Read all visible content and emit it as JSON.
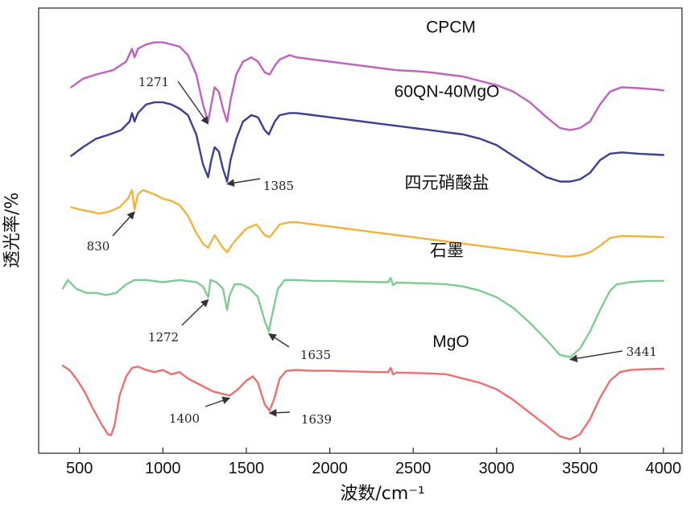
{
  "chart_data": {
    "type": "line",
    "title": "",
    "xlabel": "波数/cm⁻¹",
    "ylabel": "透光率/%",
    "xlim": [
      380,
      4050
    ],
    "xticks": [
      500,
      1000,
      1500,
      2000,
      2500,
      3000,
      3500,
      4000
    ],
    "y_ticks_shown": false,
    "ylim": [
      0,
      100
    ],
    "series": [
      {
        "name": "CPCM",
        "color": "#c061c0",
        "points": [
          [
            450,
            83
          ],
          [
            520,
            85
          ],
          [
            600,
            86
          ],
          [
            700,
            87
          ],
          [
            780,
            89
          ],
          [
            815,
            92
          ],
          [
            830,
            90
          ],
          [
            850,
            92
          ],
          [
            900,
            93
          ],
          [
            950,
            93.5
          ],
          [
            1000,
            93.5
          ],
          [
            1050,
            93
          ],
          [
            1100,
            92.5
          ],
          [
            1150,
            90.5
          ],
          [
            1200,
            86
          ],
          [
            1240,
            79
          ],
          [
            1271,
            75
          ],
          [
            1290,
            79
          ],
          [
            1310,
            83
          ],
          [
            1335,
            82
          ],
          [
            1360,
            78
          ],
          [
            1385,
            75
          ],
          [
            1405,
            80
          ],
          [
            1440,
            86
          ],
          [
            1480,
            89
          ],
          [
            1530,
            90
          ],
          [
            1570,
            89
          ],
          [
            1610,
            86.5
          ],
          [
            1640,
            86
          ],
          [
            1670,
            88
          ],
          [
            1700,
            89.5
          ],
          [
            1760,
            90.5
          ],
          [
            1800,
            90
          ],
          [
            1900,
            89.5
          ],
          [
            2000,
            89
          ],
          [
            2100,
            88.5
          ],
          [
            2200,
            88
          ],
          [
            2300,
            87.5
          ],
          [
            2400,
            87
          ],
          [
            2500,
            86.8
          ],
          [
            2600,
            86.5
          ],
          [
            2700,
            86
          ],
          [
            2800,
            85.5
          ],
          [
            2900,
            84.5
          ],
          [
            3000,
            83.5
          ],
          [
            3100,
            82
          ],
          [
            3200,
            79.5
          ],
          [
            3300,
            76
          ],
          [
            3380,
            73.5
          ],
          [
            3441,
            73
          ],
          [
            3500,
            73.5
          ],
          [
            3560,
            75
          ],
          [
            3620,
            79
          ],
          [
            3680,
            82
          ],
          [
            3750,
            83
          ],
          [
            3850,
            82.8
          ],
          [
            3950,
            82.5
          ],
          [
            4000,
            82.3
          ]
        ]
      },
      {
        "name": "60QN-40MgO",
        "color": "#3c3f94",
        "points": [
          [
            450,
            67
          ],
          [
            520,
            69
          ],
          [
            600,
            71
          ],
          [
            680,
            72
          ],
          [
            750,
            73
          ],
          [
            800,
            75
          ],
          [
            815,
            77
          ],
          [
            830,
            75
          ],
          [
            850,
            77
          ],
          [
            900,
            79
          ],
          [
            950,
            79.5
          ],
          [
            1000,
            79.5
          ],
          [
            1050,
            79
          ],
          [
            1100,
            78
          ],
          [
            1150,
            76.5
          ],
          [
            1200,
            72
          ],
          [
            1240,
            65
          ],
          [
            1271,
            62
          ],
          [
            1290,
            66
          ],
          [
            1310,
            69
          ],
          [
            1335,
            68
          ],
          [
            1360,
            64
          ],
          [
            1385,
            61
          ],
          [
            1405,
            66
          ],
          [
            1440,
            71
          ],
          [
            1480,
            75
          ],
          [
            1530,
            76.5
          ],
          [
            1570,
            76
          ],
          [
            1610,
            73
          ],
          [
            1635,
            72
          ],
          [
            1670,
            75
          ],
          [
            1700,
            76.5
          ],
          [
            1760,
            77
          ],
          [
            1800,
            77
          ],
          [
            1900,
            76.5
          ],
          [
            2000,
            76
          ],
          [
            2100,
            75.5
          ],
          [
            2200,
            75
          ],
          [
            2300,
            74.5
          ],
          [
            2400,
            74
          ],
          [
            2500,
            73.5
          ],
          [
            2600,
            73
          ],
          [
            2700,
            72.5
          ],
          [
            2800,
            72
          ],
          [
            2900,
            71
          ],
          [
            3000,
            69.5
          ],
          [
            3100,
            67
          ],
          [
            3200,
            64.5
          ],
          [
            3300,
            62
          ],
          [
            3380,
            61
          ],
          [
            3441,
            61
          ],
          [
            3500,
            61.5
          ],
          [
            3560,
            63
          ],
          [
            3620,
            66
          ],
          [
            3680,
            67.5
          ],
          [
            3750,
            67.8
          ],
          [
            3850,
            67.5
          ],
          [
            3950,
            67.3
          ],
          [
            4000,
            67.2
          ]
        ]
      },
      {
        "name": "四元硝酸盐",
        "color": "#f2b23b",
        "points": [
          [
            450,
            55
          ],
          [
            500,
            54.5
          ],
          [
            560,
            54
          ],
          [
            620,
            53.5
          ],
          [
            680,
            54
          ],
          [
            740,
            55
          ],
          [
            790,
            57
          ],
          [
            815,
            59
          ],
          [
            830,
            54.5
          ],
          [
            850,
            58
          ],
          [
            880,
            59
          ],
          [
            950,
            58
          ],
          [
            1000,
            57
          ],
          [
            1050,
            56.5
          ],
          [
            1100,
            55.5
          ],
          [
            1150,
            53
          ],
          [
            1200,
            49
          ],
          [
            1240,
            46.5
          ],
          [
            1272,
            45.5
          ],
          [
            1290,
            47
          ],
          [
            1310,
            48.5
          ],
          [
            1335,
            47
          ],
          [
            1360,
            45.5
          ],
          [
            1385,
            44.5
          ],
          [
            1410,
            46
          ],
          [
            1440,
            47.5
          ],
          [
            1500,
            50
          ],
          [
            1560,
            51
          ],
          [
            1610,
            48.5
          ],
          [
            1640,
            48
          ],
          [
            1670,
            49.5
          ],
          [
            1700,
            51
          ],
          [
            1760,
            51.5
          ],
          [
            1800,
            51.5
          ],
          [
            1900,
            51
          ],
          [
            2000,
            50.5
          ],
          [
            2100,
            50
          ],
          [
            2200,
            49.5
          ],
          [
            2300,
            49
          ],
          [
            2400,
            48.5
          ],
          [
            2500,
            48
          ],
          [
            2600,
            47.5
          ],
          [
            2700,
            47
          ],
          [
            2800,
            46.5
          ],
          [
            2900,
            46
          ],
          [
            3000,
            45.5
          ],
          [
            3100,
            45
          ],
          [
            3200,
            44.5
          ],
          [
            3300,
            44
          ],
          [
            3400,
            43.5
          ],
          [
            3441,
            43.5
          ],
          [
            3500,
            43.8
          ],
          [
            3560,
            44.5
          ],
          [
            3620,
            46
          ],
          [
            3680,
            47.8
          ],
          [
            3750,
            48.3
          ],
          [
            3850,
            48.2
          ],
          [
            3950,
            48.1
          ],
          [
            4000,
            48
          ]
        ]
      },
      {
        "name": "石墨",
        "color": "#7fcc92",
        "points": [
          [
            400,
            36
          ],
          [
            430,
            38
          ],
          [
            480,
            36
          ],
          [
            540,
            35
          ],
          [
            600,
            35
          ],
          [
            660,
            34.5
          ],
          [
            720,
            35
          ],
          [
            780,
            37
          ],
          [
            830,
            38
          ],
          [
            900,
            38
          ],
          [
            1000,
            37.5
          ],
          [
            1100,
            38
          ],
          [
            1200,
            37.5
          ],
          [
            1240,
            36.5
          ],
          [
            1272,
            34
          ],
          [
            1285,
            38
          ],
          [
            1320,
            37.5
          ],
          [
            1360,
            36
          ],
          [
            1385,
            31
          ],
          [
            1400,
            34.5
          ],
          [
            1430,
            37
          ],
          [
            1470,
            37
          ],
          [
            1520,
            36
          ],
          [
            1570,
            34
          ],
          [
            1610,
            28.5
          ],
          [
            1635,
            26
          ],
          [
            1655,
            30
          ],
          [
            1690,
            36
          ],
          [
            1730,
            38
          ],
          [
            1800,
            38
          ],
          [
            1900,
            37.8
          ],
          [
            2000,
            37.8
          ],
          [
            2100,
            37.7
          ],
          [
            2200,
            37.6
          ],
          [
            2300,
            37.5
          ],
          [
            2350,
            37.5
          ],
          [
            2365,
            38.5
          ],
          [
            2380,
            36.8
          ],
          [
            2400,
            37.4
          ],
          [
            2500,
            37.3
          ],
          [
            2600,
            37.2
          ],
          [
            2700,
            37
          ],
          [
            2800,
            36.5
          ],
          [
            2900,
            35.5
          ],
          [
            3000,
            34
          ],
          [
            3100,
            31.5
          ],
          [
            3200,
            28
          ],
          [
            3300,
            24
          ],
          [
            3380,
            20.5
          ],
          [
            3441,
            20
          ],
          [
            3500,
            22
          ],
          [
            3560,
            26
          ],
          [
            3620,
            31
          ],
          [
            3680,
            35.5
          ],
          [
            3720,
            37
          ],
          [
            3800,
            37.5
          ],
          [
            3900,
            37.8
          ],
          [
            4000,
            37.8
          ]
        ]
      },
      {
        "name": "MgO",
        "color": "#ee6f6f",
        "points": [
          [
            400,
            18
          ],
          [
            440,
            17
          ],
          [
            480,
            15
          ],
          [
            530,
            12
          ],
          [
            580,
            8
          ],
          [
            630,
            4.5
          ],
          [
            670,
            2
          ],
          [
            690,
            1.8
          ],
          [
            710,
            4
          ],
          [
            740,
            11
          ],
          [
            780,
            15.5
          ],
          [
            815,
            17.5
          ],
          [
            850,
            17.8
          ],
          [
            900,
            17
          ],
          [
            950,
            16.5
          ],
          [
            1000,
            17
          ],
          [
            1050,
            16
          ],
          [
            1100,
            16.5
          ],
          [
            1150,
            15
          ],
          [
            1200,
            14
          ],
          [
            1250,
            13
          ],
          [
            1300,
            12
          ],
          [
            1350,
            11.5
          ],
          [
            1400,
            11
          ],
          [
            1450,
            12.5
          ],
          [
            1500,
            14.5
          ],
          [
            1540,
            15.5
          ],
          [
            1570,
            14
          ],
          [
            1610,
            9
          ],
          [
            1639,
            7.5
          ],
          [
            1665,
            10
          ],
          [
            1700,
            15
          ],
          [
            1740,
            16.8
          ],
          [
            1800,
            17
          ],
          [
            1900,
            16.8
          ],
          [
            2000,
            16.8
          ],
          [
            2100,
            16.7
          ],
          [
            2200,
            16.6
          ],
          [
            2300,
            16.5
          ],
          [
            2350,
            16.5
          ],
          [
            2365,
            17.5
          ],
          [
            2380,
            16
          ],
          [
            2400,
            16.4
          ],
          [
            2500,
            16.3
          ],
          [
            2600,
            16.2
          ],
          [
            2700,
            16
          ],
          [
            2800,
            15
          ],
          [
            2900,
            14
          ],
          [
            3000,
            12.5
          ],
          [
            3100,
            10
          ],
          [
            3200,
            7
          ],
          [
            3300,
            4
          ],
          [
            3380,
            1.5
          ],
          [
            3441,
            0.8
          ],
          [
            3500,
            2
          ],
          [
            3560,
            5.5
          ],
          [
            3620,
            10.5
          ],
          [
            3680,
            14.5
          ],
          [
            3740,
            16.5
          ],
          [
            3800,
            17
          ],
          [
            3900,
            17.2
          ],
          [
            4000,
            17.3
          ]
        ]
      }
    ],
    "legend": [
      {
        "text": "CPCM",
        "series": 0
      },
      {
        "text": "60QN-40MgO",
        "series": 1
      },
      {
        "text": "四元硝酸盐",
        "series": 2
      },
      {
        "text": "石墨",
        "series": 3
      },
      {
        "text": "MgO",
        "series": 4
      }
    ],
    "annotations": [
      {
        "text": "1271",
        "x": 1271,
        "series": 0,
        "direction": "left"
      },
      {
        "text": "1385",
        "x": 1385,
        "series": 1,
        "direction": "right"
      },
      {
        "text": "830",
        "x": 830,
        "series": 2,
        "direction": "left"
      },
      {
        "text": "1272",
        "x": 1272,
        "series": 3,
        "direction": "left"
      },
      {
        "text": "1635",
        "x": 1635,
        "series": 3,
        "direction": "right"
      },
      {
        "text": "3441",
        "x": 3441,
        "series": 3,
        "direction": "right"
      },
      {
        "text": "1400",
        "x": 1400,
        "series": 4,
        "direction": "left"
      },
      {
        "text": "1639",
        "x": 1639,
        "series": 4,
        "direction": "right"
      }
    ]
  }
}
